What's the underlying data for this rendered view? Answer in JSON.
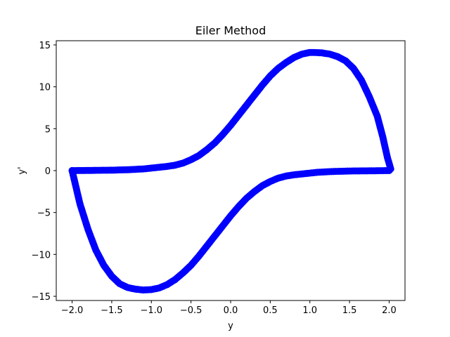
{
  "chart_data": {
    "type": "scatter",
    "title": "Eiler Method",
    "xlabel": "y",
    "ylabel": "y'",
    "xlim": [
      -2.2,
      2.2
    ],
    "ylim": [
      -15.5,
      15.5
    ],
    "xticks": [
      -2.0,
      -1.5,
      -1.0,
      -0.5,
      0.0,
      0.5,
      1.0,
      1.5,
      2.0
    ],
    "xtick_labels": [
      "−2.0",
      "−1.5",
      "−1.0",
      "−0.5",
      "0.0",
      "0.5",
      "1.0",
      "1.5",
      "2.0"
    ],
    "yticks": [
      -15,
      -10,
      -5,
      0,
      5,
      10,
      15
    ],
    "ytick_labels": [
      "−15",
      "−10",
      "−5",
      "0",
      "5",
      "10",
      "15"
    ],
    "grid": false,
    "series": [
      {
        "color": "#0000ff",
        "points": [
          [
            -2.0,
            0.0
          ],
          [
            -1.96,
            -1.6
          ],
          [
            -1.9,
            -4.0
          ],
          [
            -1.8,
            -7.0
          ],
          [
            -1.7,
            -9.5
          ],
          [
            -1.6,
            -11.3
          ],
          [
            -1.5,
            -12.6
          ],
          [
            -1.4,
            -13.5
          ],
          [
            -1.3,
            -13.95
          ],
          [
            -1.2,
            -14.15
          ],
          [
            -1.1,
            -14.25
          ],
          [
            -1.0,
            -14.2
          ],
          [
            -0.9,
            -14.0
          ],
          [
            -0.8,
            -13.6
          ],
          [
            -0.7,
            -13.0
          ],
          [
            -0.6,
            -12.2
          ],
          [
            -0.5,
            -11.3
          ],
          [
            -0.4,
            -10.2
          ],
          [
            -0.3,
            -9.0
          ],
          [
            -0.2,
            -7.8
          ],
          [
            -0.1,
            -6.6
          ],
          [
            0.0,
            -5.4
          ],
          [
            0.1,
            -4.3
          ],
          [
            0.2,
            -3.3
          ],
          [
            0.3,
            -2.5
          ],
          [
            0.4,
            -1.8
          ],
          [
            0.5,
            -1.3
          ],
          [
            0.6,
            -0.9
          ],
          [
            0.7,
            -0.65
          ],
          [
            0.8,
            -0.5
          ],
          [
            0.9,
            -0.4
          ],
          [
            1.0,
            -0.3
          ],
          [
            1.1,
            -0.2
          ],
          [
            1.2,
            -0.15
          ],
          [
            1.3,
            -0.1
          ],
          [
            1.4,
            -0.08
          ],
          [
            1.5,
            -0.05
          ],
          [
            1.6,
            -0.04
          ],
          [
            1.7,
            -0.03
          ],
          [
            1.8,
            -0.02
          ],
          [
            1.9,
            -0.01
          ],
          [
            2.0,
            0.0
          ],
          [
            2.02,
            0.2
          ],
          [
            1.98,
            1.5
          ],
          [
            1.92,
            4.0
          ],
          [
            1.85,
            6.5
          ],
          [
            1.75,
            8.8
          ],
          [
            1.65,
            10.8
          ],
          [
            1.55,
            12.2
          ],
          [
            1.45,
            13.1
          ],
          [
            1.35,
            13.6
          ],
          [
            1.25,
            13.9
          ],
          [
            1.15,
            14.05
          ],
          [
            1.05,
            14.1
          ],
          [
            1.0,
            14.1
          ],
          [
            0.9,
            13.9
          ],
          [
            0.8,
            13.5
          ],
          [
            0.7,
            12.9
          ],
          [
            0.6,
            12.2
          ],
          [
            0.5,
            11.3
          ],
          [
            0.4,
            10.2
          ],
          [
            0.3,
            9.0
          ],
          [
            0.2,
            7.8
          ],
          [
            0.1,
            6.6
          ],
          [
            0.0,
            5.4
          ],
          [
            -0.1,
            4.3
          ],
          [
            -0.2,
            3.3
          ],
          [
            -0.3,
            2.5
          ],
          [
            -0.4,
            1.8
          ],
          [
            -0.5,
            1.3
          ],
          [
            -0.6,
            0.9
          ],
          [
            -0.7,
            0.65
          ],
          [
            -0.8,
            0.5
          ],
          [
            -0.9,
            0.4
          ],
          [
            -1.0,
            0.3
          ],
          [
            -1.1,
            0.2
          ],
          [
            -1.2,
            0.15
          ],
          [
            -1.3,
            0.1
          ],
          [
            -1.4,
            0.08
          ],
          [
            -1.5,
            0.05
          ],
          [
            -1.6,
            0.04
          ],
          [
            -1.7,
            0.03
          ],
          [
            -1.8,
            0.02
          ],
          [
            -1.9,
            0.01
          ],
          [
            -2.0,
            0.0
          ]
        ]
      }
    ]
  }
}
